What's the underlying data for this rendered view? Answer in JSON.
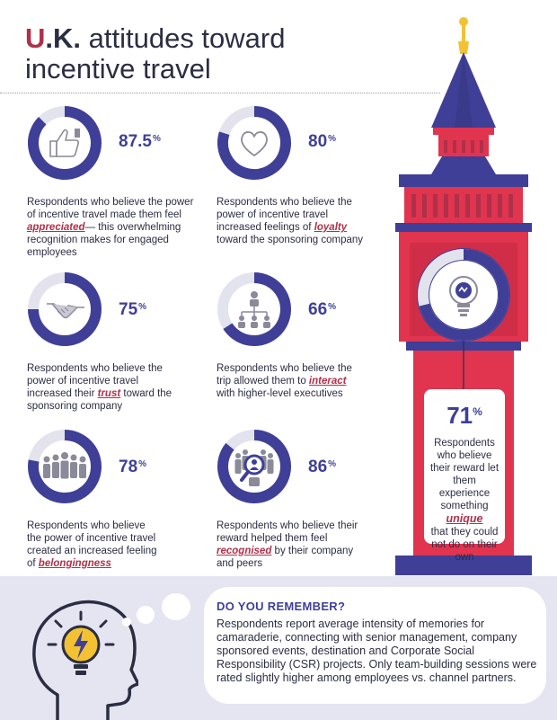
{
  "title": {
    "u": "U",
    "k": ".K.",
    "rest_line1": " attitudes toward",
    "line2": "incentive travel"
  },
  "stats": [
    {
      "value": "87.5",
      "unit": "%",
      "value_fraction": 0.875,
      "icon": "thumbs-up-icon",
      "desc_before": "Respondents who believe the power of incentive travel made them feel ",
      "desc_em": "appreciated",
      "desc_after": "— this overwhelming recognition makes for engaged employees"
    },
    {
      "value": "80",
      "unit": "%",
      "value_fraction": 0.8,
      "icon": "heart-icon",
      "desc_before": "Respondents who believe the power of incentive travel increased feelings of ",
      "desc_em": "loyalty",
      "desc_after": " toward the sponsoring company"
    },
    {
      "value": "75",
      "unit": "%",
      "value_fraction": 0.75,
      "icon": "handshake-icon",
      "desc_before": "Respondents who believe the power of incentive travel increased their ",
      "desc_em": "trust",
      "desc_after": " toward the sponsoring company"
    },
    {
      "value": "66",
      "unit": "%",
      "value_fraction": 0.66,
      "icon": "org-chart-icon",
      "desc_before": "Respondents who believe the trip allowed them to ",
      "desc_em": "interact",
      "desc_after": " with higher-level executives"
    },
    {
      "value": "78",
      "unit": "%",
      "value_fraction": 0.78,
      "icon": "group-icon",
      "desc_before": "Respondents who believe the power of incentive travel created an increased feeling of ",
      "desc_em": "belongingness",
      "desc_after": ""
    },
    {
      "value": "86",
      "unit": "%",
      "value_fraction": 0.86,
      "icon": "magnifier-person-icon",
      "desc_before": "Respondents who believe their reward helped them feel ",
      "desc_em": "recognised",
      "desc_after": " by their company and peers"
    }
  ],
  "tower": {
    "value": "71",
    "unit": "%",
    "value_fraction": 0.71,
    "icon": "lightbulb-icon",
    "desc_before": "Respondents who believe their reward let them experience something",
    "desc_em": "unique",
    "desc_after": "that they could not do on their own"
  },
  "remember": {
    "title": "DO YOU REMEMBER?",
    "text": "Respondents report average intensity of memories for camaraderie, connecting with senior management, company sponsored events, destination and Corporate Social Responsibility (CSR) projects. Only team-building sessions were rated slightly higher among employees vs. channel partners.",
    "icon": "head-lightbulb-icon"
  },
  "colors": {
    "navy": "#3f3f97",
    "red": "#e0344f",
    "crimson": "#b0304a",
    "dark": "#2b2d42",
    "light_gray": "#e3e3ee",
    "lavender": "#e5e5f1",
    "gold": "#f2c232"
  }
}
